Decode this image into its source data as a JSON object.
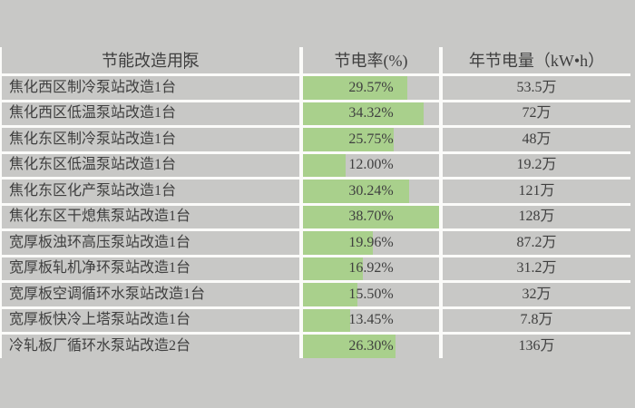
{
  "page": {
    "background_color": "#c8c8c6",
    "gridline_color": "#fbfbf9",
    "text_color": "#3f3f3f"
  },
  "table": {
    "columns": [
      {
        "label": "节能改造用泵"
      },
      {
        "label": "节电率(%)"
      },
      {
        "label": "年节电量（kW•h）"
      }
    ],
    "bar": {
      "color": "#a9d08c",
      "max_value": 38.7
    },
    "rows": [
      {
        "pump": "焦化西区制冷泵站改造1台",
        "rate_label": "29.57%",
        "rate_value": 29.57,
        "annual_label": "53.5万"
      },
      {
        "pump": "焦化西区低温泵站改造1台",
        "rate_label": "34.32%",
        "rate_value": 34.32,
        "annual_label": "72万"
      },
      {
        "pump": "焦化东区制冷泵站改造1台",
        "rate_label": "25.75%",
        "rate_value": 25.75,
        "annual_label": "48万"
      },
      {
        "pump": "焦化东区低温泵站改造1台",
        "rate_label": "12.00%",
        "rate_value": 12.0,
        "annual_label": "19.2万"
      },
      {
        "pump": "焦化东区化产泵站改造1台",
        "rate_label": "30.24%",
        "rate_value": 30.24,
        "annual_label": "121万"
      },
      {
        "pump": "焦化东区干熄焦泵站改造1台",
        "rate_label": "38.70%",
        "rate_value": 38.7,
        "annual_label": "128万"
      },
      {
        "pump": "宽厚板浊环高压泵站改造1台",
        "rate_label": "19.96%",
        "rate_value": 19.96,
        "annual_label": "87.2万"
      },
      {
        "pump": "宽厚板轧机净环泵站改造1台",
        "rate_label": "16.92%",
        "rate_value": 16.92,
        "annual_label": "31.2万"
      },
      {
        "pump": "宽厚板空调循环水泵站改造1台",
        "rate_label": "15.50%",
        "rate_value": 15.5,
        "annual_label": "32万"
      },
      {
        "pump": "宽厚板快冷上塔泵站改造1台",
        "rate_label": "13.45%",
        "rate_value": 13.45,
        "annual_label": "7.8万"
      },
      {
        "pump": "冷轧板厂循环水泵站改造2台",
        "rate_label": "26.30%",
        "rate_value": 26.3,
        "annual_label": "136万"
      }
    ]
  }
}
